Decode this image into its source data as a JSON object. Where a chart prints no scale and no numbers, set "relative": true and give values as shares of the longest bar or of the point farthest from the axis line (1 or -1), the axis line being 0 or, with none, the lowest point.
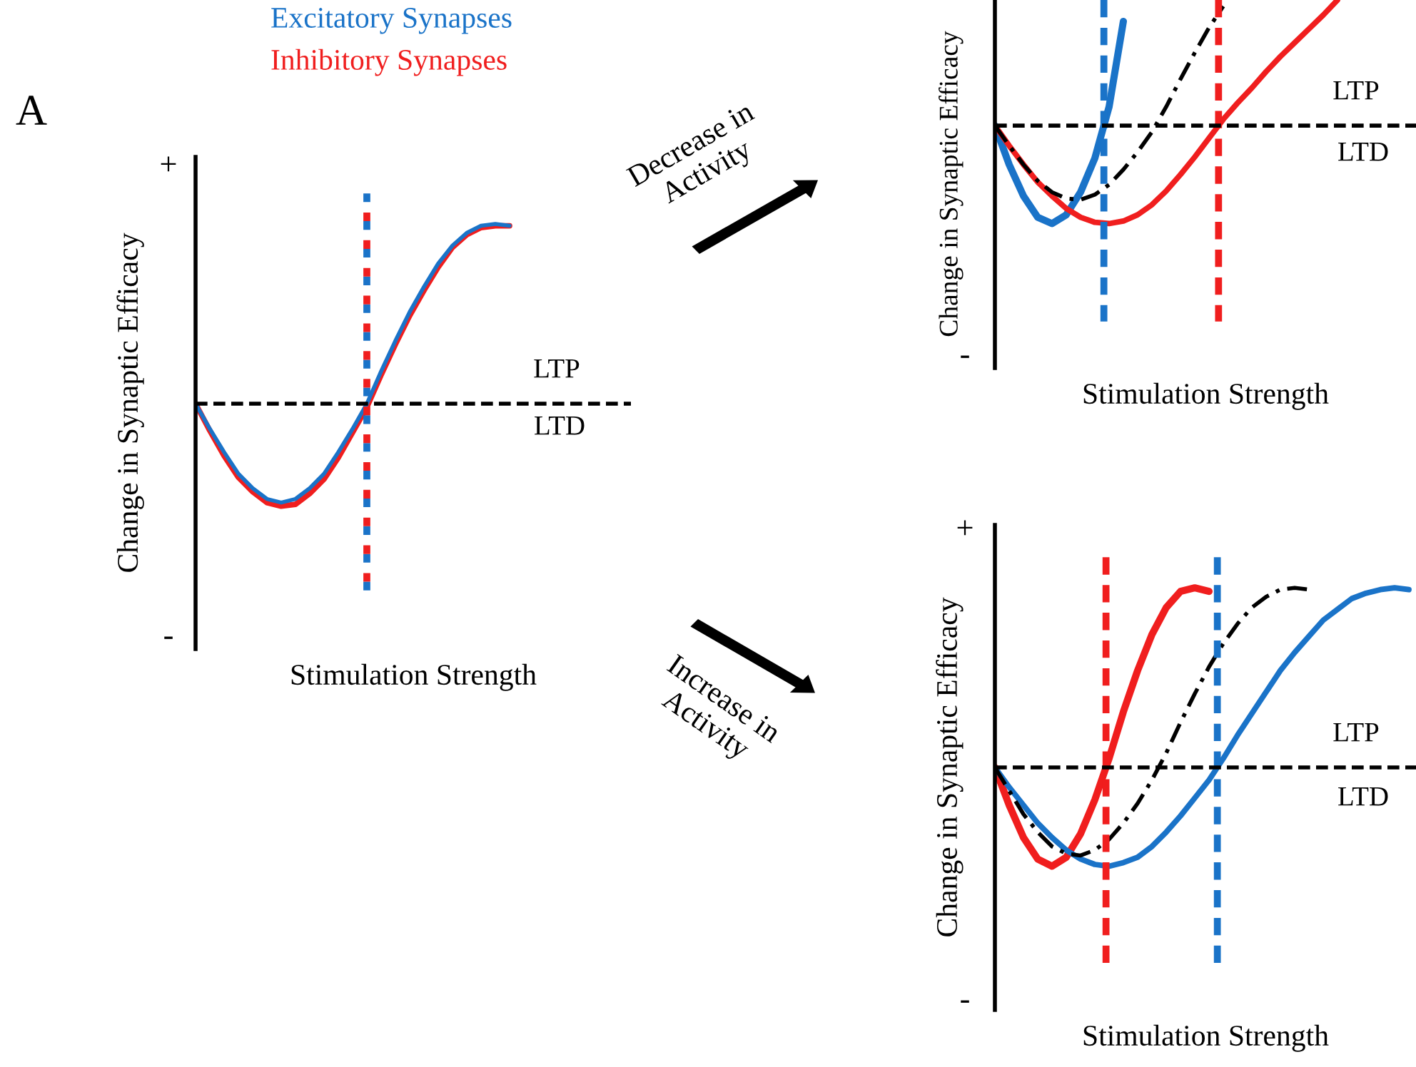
{
  "chart_data": [
    {
      "type": "line",
      "relative": true,
      "xlabel": "Stimulation Strength",
      "ylabel": "Change in Synaptic Efficacy",
      "legend": "top",
      "categories": [
        null,
        null,
        null,
        null,
        null,
        null,
        null,
        null,
        null,
        null,
        null,
        null,
        null,
        null,
        null,
        null,
        null,
        null,
        null,
        null,
        null,
        null,
        null,
        null,
        null,
        null,
        null,
        null,
        null,
        null,
        null
      ],
      "series": [
        {
          "name": "Excitatory Synapses",
          "color": "#1a73c8",
          "line_style": "solid",
          "values": [
            0,
            -0.14,
            -0.27,
            -0.39,
            -0.47,
            -0.53,
            -0.55,
            -0.53,
            -0.47,
            -0.39,
            -0.27,
            -0.14,
            0,
            0.18,
            0.35,
            0.51,
            0.65,
            0.78,
            0.88,
            0.95,
            0.99,
            1.0,
            0.99,
            null,
            null,
            null,
            null,
            null,
            null,
            null,
            null
          ]
        },
        {
          "name": "Inhibitory Synapses",
          "color": "#f01e1e",
          "line_style": "solid",
          "values": [
            0,
            -0.15,
            -0.29,
            -0.41,
            -0.49,
            -0.55,
            -0.57,
            -0.56,
            -0.5,
            -0.42,
            -0.3,
            -0.16,
            -0.02,
            0.16,
            0.33,
            0.49,
            0.63,
            0.76,
            0.87,
            0.94,
            0.98,
            0.99,
            0.99,
            null,
            null,
            null,
            null,
            null,
            null,
            null,
            null
          ]
        }
      ],
      "ref_lines": [
        {
          "axis": "y",
          "value": 0,
          "color": "#000000",
          "line_style": "dashed"
        }
      ],
      "annotations": [
        "A",
        "+",
        "-",
        "LTP",
        "LTD"
      ]
    },
    {
      "type": "line",
      "relative": true,
      "xlabel": "Stimulation Strength",
      "ylabel": "Change in Synaptic Efficacy",
      "categories": [
        null,
        null,
        null,
        null,
        null,
        null,
        null,
        null,
        null,
        null,
        null,
        null,
        null,
        null,
        null,
        null,
        null,
        null,
        null,
        null,
        null,
        null,
        null,
        null,
        null,
        null,
        null,
        null,
        null,
        null
      ],
      "series": [
        {
          "color": "#000000",
          "line_style": "dashdot",
          "values": [
            0,
            -0.16,
            -0.31,
            -0.44,
            -0.53,
            -0.58,
            -0.59,
            -0.55,
            -0.47,
            -0.35,
            -0.21,
            -0.05,
            0.15,
            0.37,
            0.58,
            0.78,
            0.95,
            null,
            null,
            null,
            null,
            null,
            null,
            null,
            null,
            null,
            null,
            null,
            null,
            null
          ]
        },
        {
          "color": "#f01e1e",
          "line_style": "solid",
          "values": [
            0,
            -0.16,
            -0.31,
            -0.45,
            -0.56,
            -0.66,
            -0.73,
            -0.77,
            -0.78,
            -0.76,
            -0.71,
            -0.63,
            -0.52,
            -0.39,
            -0.25,
            -0.1,
            0.05,
            0.18,
            0.3,
            0.43,
            0.55,
            0.66,
            0.77,
            0.88,
            1.0,
            null,
            null,
            null,
            null,
            null
          ]
        },
        {
          "color": "#1a73c8",
          "line_style": "solid",
          "values": [
            0,
            -0.31,
            -0.56,
            -0.73,
            -0.78,
            -0.71,
            -0.53,
            -0.26,
            0.15,
            0.83,
            null,
            null,
            null,
            null,
            null,
            null,
            null,
            null,
            null,
            null,
            null,
            null,
            null,
            null,
            null,
            null,
            null,
            null,
            null,
            null
          ]
        }
      ],
      "ref_lines": [
        {
          "axis": "y",
          "value": 0,
          "color": "#000000",
          "line_style": "dashed"
        }
      ],
      "annotations": [
        "-",
        "LTP",
        "LTD",
        "Decrease in\nActivity"
      ]
    },
    {
      "type": "line",
      "relative": true,
      "xlabel": "Stimulation Strength",
      "ylabel": "Change in Synaptic Efficacy",
      "categories": [
        null,
        null,
        null,
        null,
        null,
        null,
        null,
        null,
        null,
        null,
        null,
        null,
        null,
        null,
        null,
        null,
        null,
        null,
        null,
        null,
        null,
        null,
        null,
        null,
        null,
        null,
        null,
        null,
        null,
        null
      ],
      "series": [
        {
          "color": "#000000",
          "line_style": "dashdot",
          "values": [
            0,
            -0.13,
            -0.26,
            -0.36,
            -0.44,
            -0.48,
            -0.49,
            -0.46,
            -0.4,
            -0.31,
            -0.2,
            -0.07,
            0.08,
            0.25,
            0.41,
            0.56,
            0.69,
            0.8,
            0.89,
            0.95,
            0.99,
            1.0,
            0.99,
            null,
            null,
            null,
            null,
            null,
            null,
            null
          ]
        },
        {
          "color": "#1a73c8",
          "line_style": "solid",
          "values": [
            0,
            -0.11,
            -0.21,
            -0.31,
            -0.39,
            -0.46,
            -0.51,
            -0.54,
            -0.55,
            -0.53,
            -0.5,
            -0.44,
            -0.36,
            -0.27,
            -0.17,
            -0.07,
            0.05,
            0.18,
            0.3,
            0.42,
            0.54,
            0.64,
            0.73,
            0.82,
            0.88,
            0.94,
            0.97,
            0.99,
            1.0,
            0.99
          ]
        },
        {
          "color": "#f01e1e",
          "line_style": "solid",
          "values": [
            0,
            -0.21,
            -0.39,
            -0.51,
            -0.55,
            -0.5,
            -0.37,
            -0.18,
            0.05,
            0.31,
            0.54,
            0.74,
            0.89,
            0.98,
            1.0,
            0.98,
            null,
            null,
            null,
            null,
            null,
            null,
            null,
            null,
            null,
            null,
            null,
            null,
            null,
            null
          ]
        }
      ],
      "ref_lines": [
        {
          "axis": "y",
          "value": 0,
          "color": "#000000",
          "line_style": "dashed"
        }
      ],
      "annotations": [
        "+",
        "-",
        "LTP",
        "LTD",
        "Increase in\nActivity"
      ]
    }
  ]
}
